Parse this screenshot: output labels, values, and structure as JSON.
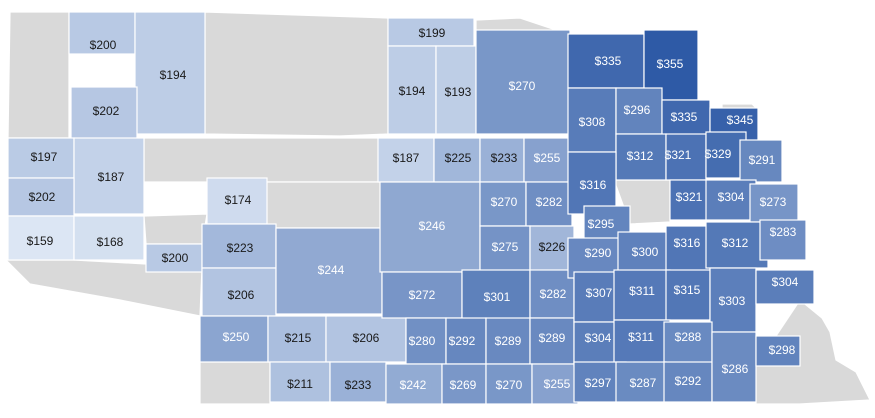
{
  "map": {
    "colors": {
      "no_data": "#d9d9d9",
      "light": "#dce6f4",
      "dark": "#2e5aa6",
      "label_dark": "#1a1a1a",
      "label_light": "#ffffff"
    },
    "value_range": [
      159,
      355
    ],
    "counties": [
      {
        "label": "$200",
        "value": 200
      },
      {
        "label": "$194",
        "value": 194
      },
      {
        "label": "$202",
        "value": 202
      },
      {
        "label": "$197",
        "value": 197
      },
      {
        "label": "$187",
        "value": 187
      },
      {
        "label": "$202",
        "value": 202
      },
      {
        "label": "$159",
        "value": 159
      },
      {
        "label": "$168",
        "value": 168
      },
      {
        "label": "$200",
        "value": 200
      },
      {
        "label": "$174",
        "value": 174
      },
      {
        "label": "$223",
        "value": 223
      },
      {
        "label": "$206",
        "value": 206
      },
      {
        "label": "$244",
        "value": 244
      },
      {
        "label": "$250",
        "value": 250
      },
      {
        "label": "$215",
        "value": 215
      },
      {
        "label": "$206",
        "value": 206
      },
      {
        "label": "$211",
        "value": 211
      },
      {
        "label": "$233",
        "value": 233
      },
      {
        "label": "$199",
        "value": 199
      },
      {
        "label": "$194",
        "value": 194
      },
      {
        "label": "$193",
        "value": 193
      },
      {
        "label": "$270",
        "value": 270
      },
      {
        "label": "$187",
        "value": 187
      },
      {
        "label": "$225",
        "value": 225
      },
      {
        "label": "$233",
        "value": 233
      },
      {
        "label": "$255",
        "value": 255
      },
      {
        "label": "$246",
        "value": 246
      },
      {
        "label": "$270",
        "value": 270
      },
      {
        "label": "$282",
        "value": 282
      },
      {
        "label": "$275",
        "value": 275
      },
      {
        "label": "$226",
        "value": 226
      },
      {
        "label": "$272",
        "value": 272
      },
      {
        "label": "$301",
        "value": 301
      },
      {
        "label": "$282",
        "value": 282
      },
      {
        "label": "$280",
        "value": 280
      },
      {
        "label": "$292",
        "value": 292
      },
      {
        "label": "$289",
        "value": 289
      },
      {
        "label": "$289",
        "value": 289
      },
      {
        "label": "$242",
        "value": 242
      },
      {
        "label": "$269",
        "value": 269
      },
      {
        "label": "$270",
        "value": 270
      },
      {
        "label": "$255",
        "value": 255
      },
      {
        "label": "$335",
        "value": 335
      },
      {
        "label": "$355",
        "value": 355
      },
      {
        "label": "$308",
        "value": 308
      },
      {
        "label": "$296",
        "value": 296
      },
      {
        "label": "$335",
        "value": 335
      },
      {
        "label": "$345",
        "value": 345
      },
      {
        "label": "$312",
        "value": 312
      },
      {
        "label": "$321",
        "value": 321
      },
      {
        "label": "$329",
        "value": 329
      },
      {
        "label": "$291",
        "value": 291
      },
      {
        "label": "$316",
        "value": 316
      },
      {
        "label": "$321",
        "value": 321
      },
      {
        "label": "$304",
        "value": 304
      },
      {
        "label": "$273",
        "value": 273
      },
      {
        "label": "$295",
        "value": 295
      },
      {
        "label": "$290",
        "value": 290
      },
      {
        "label": "$300",
        "value": 300
      },
      {
        "label": "$316",
        "value": 316
      },
      {
        "label": "$312",
        "value": 312
      },
      {
        "label": "$283",
        "value": 283
      },
      {
        "label": "$307",
        "value": 307
      },
      {
        "label": "$311",
        "value": 311
      },
      {
        "label": "$315",
        "value": 315
      },
      {
        "label": "$303",
        "value": 303
      },
      {
        "label": "$304",
        "value": 304
      },
      {
        "label": "$304",
        "value": 304
      },
      {
        "label": "$311",
        "value": 311
      },
      {
        "label": "$288",
        "value": 288
      },
      {
        "label": "$297",
        "value": 297
      },
      {
        "label": "$287",
        "value": 287
      },
      {
        "label": "$292",
        "value": 292
      },
      {
        "label": "$286",
        "value": 286
      },
      {
        "label": "$298",
        "value": 298
      }
    ]
  }
}
